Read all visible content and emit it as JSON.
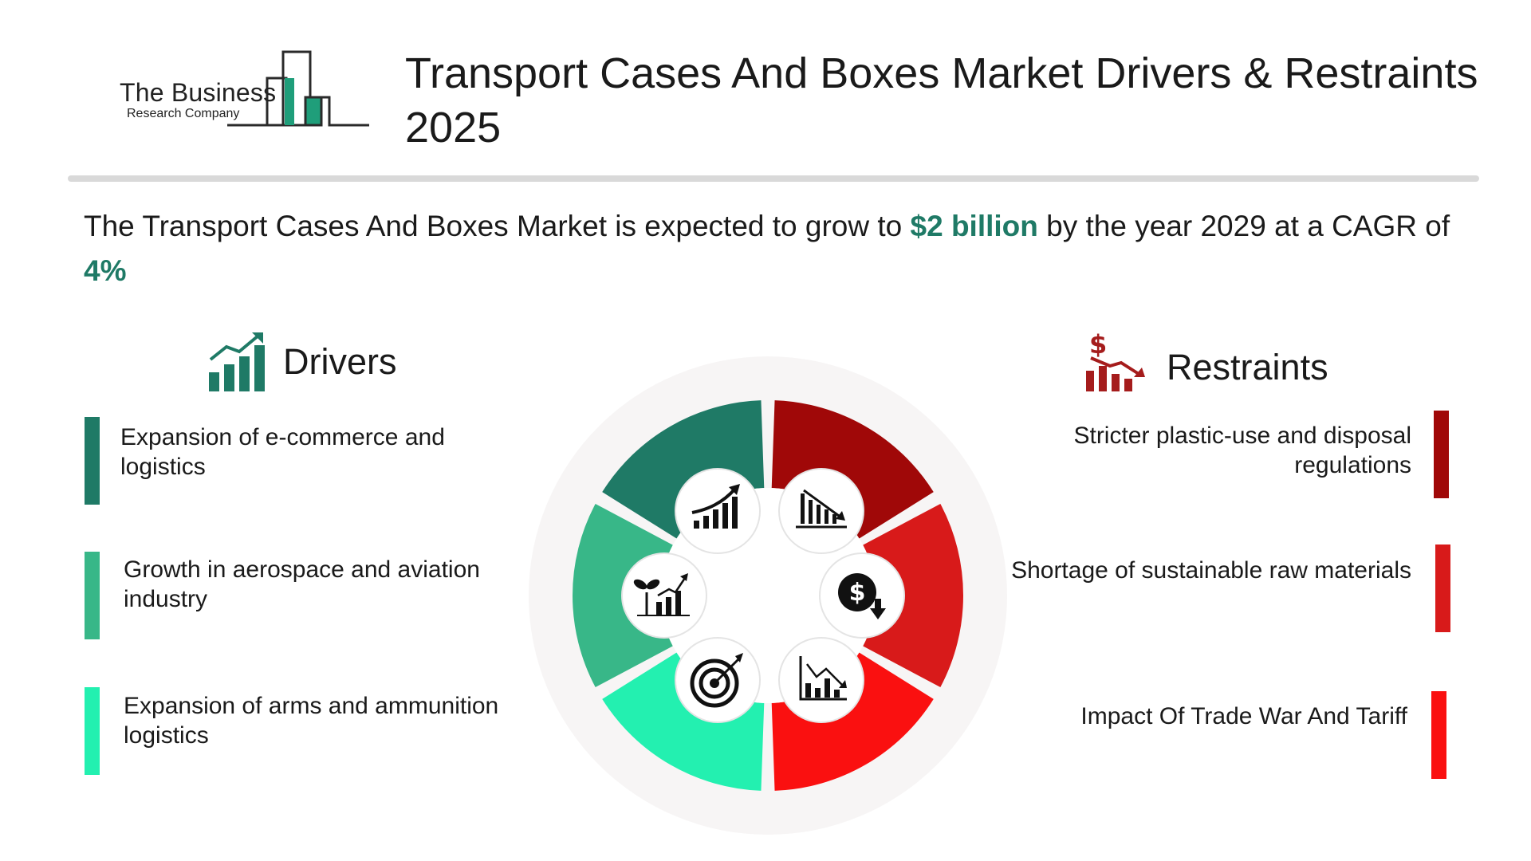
{
  "logo": {
    "line1": "The Business",
    "line2": "Research Company"
  },
  "title": "Transport Cases And Boxes Market Drivers & Restraints 2025",
  "summary": {
    "prefix": "The Transport Cases And Boxes Market is expected to grow to ",
    "value": "$2 billion",
    "middle": " by the year 2029 at a CAGR of ",
    "cagr": "4%"
  },
  "drivers": {
    "title": "Drivers",
    "icon": "growth-chart-icon",
    "items": [
      {
        "text": "Expansion of e-commerce and logistics",
        "color": "#1f7a66"
      },
      {
        "text": "Growth in aerospace and aviation industry",
        "color": "#38b788"
      },
      {
        "text": "Expansion of arms and ammunition logistics",
        "color": "#23f0b0"
      }
    ]
  },
  "restraints": {
    "title": "Restraints",
    "icon": "dollar-decline-chart-icon",
    "items": [
      {
        "text": "Stricter plastic-use and disposal regulations",
        "color": "#a00808"
      },
      {
        "text": "Shortage of sustainable raw materials",
        "color": "#d81a1a"
      },
      {
        "text": "Impact Of Trade War And Tariff",
        "color": "#fa1010"
      }
    ]
  },
  "wheel_icons": [
    "rising-bar-chart-icon",
    "plant-growth-chart-icon",
    "target-icon",
    "falling-bar-chart-icon",
    "dollar-down-icon",
    "declining-chart-icon"
  ]
}
